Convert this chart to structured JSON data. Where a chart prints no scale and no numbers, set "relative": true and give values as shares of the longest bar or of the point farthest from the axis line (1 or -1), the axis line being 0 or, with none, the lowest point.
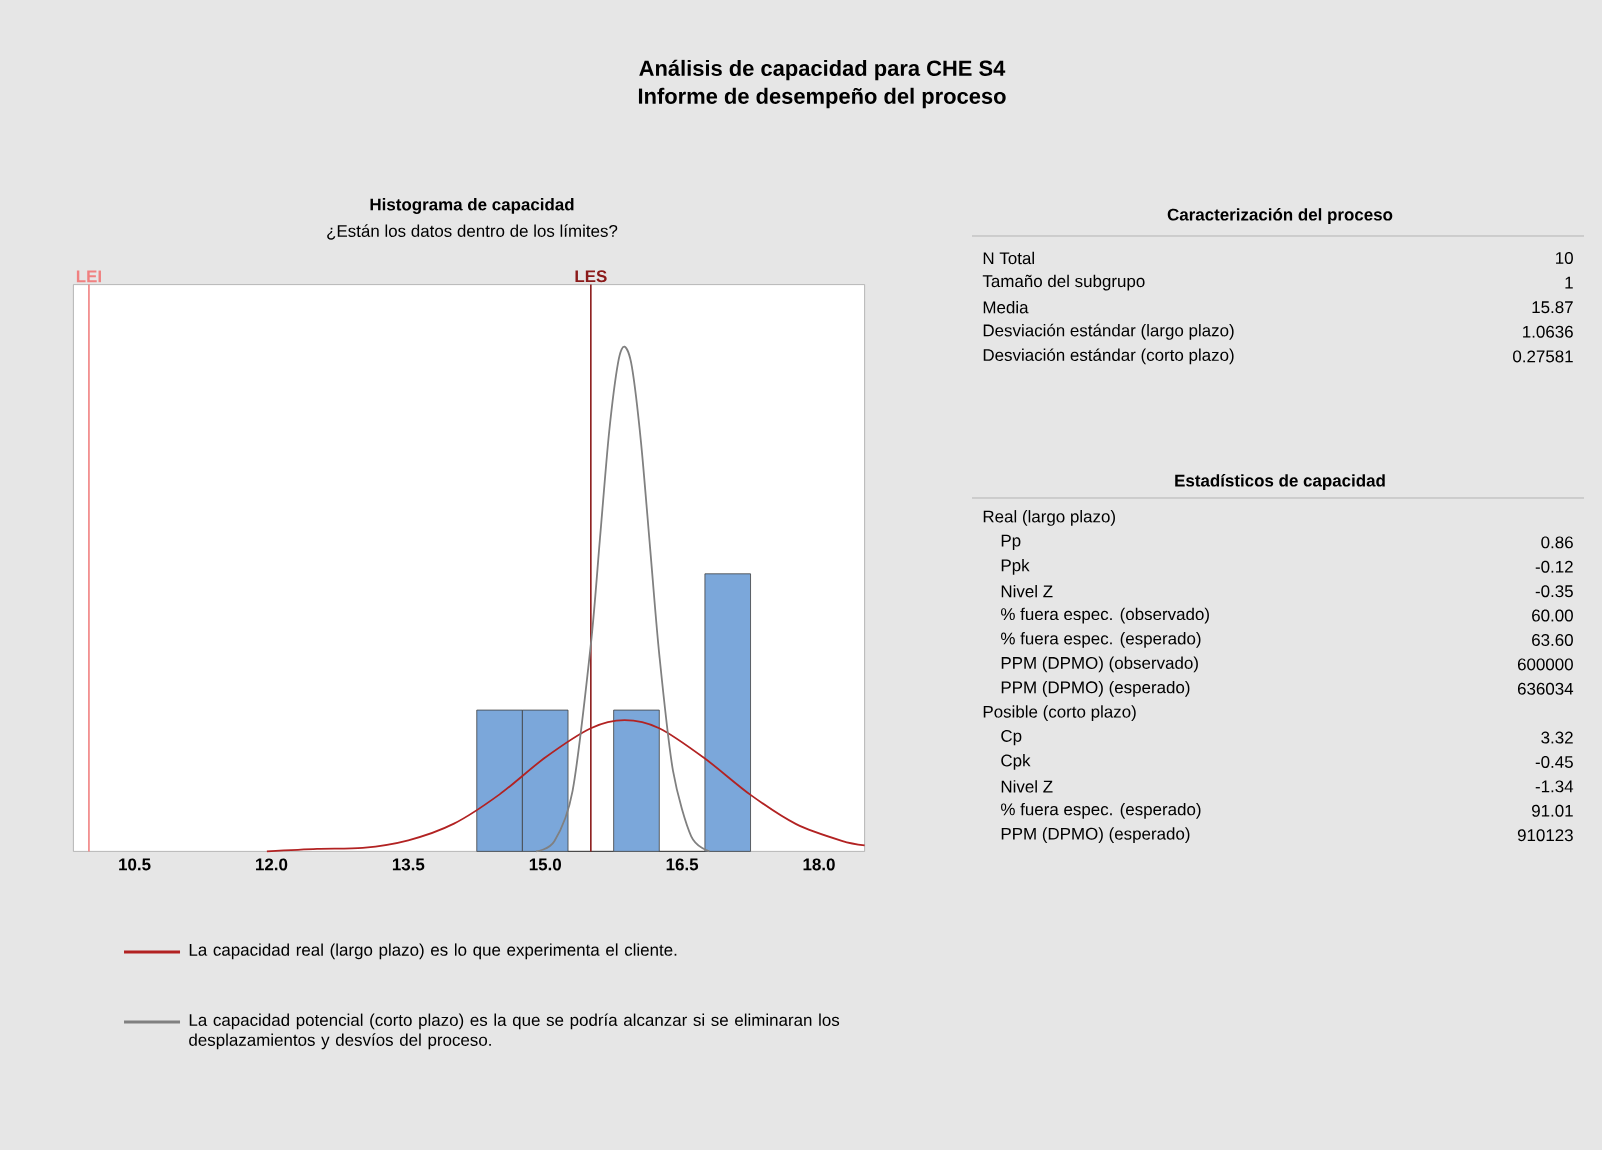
{
  "chart_data": {
    "type": "histogram",
    "title": "Análisis de capacidad para CHE S4",
    "subtitle": "Informe de desempeño del proceso",
    "relative": true,
    "bins": [
      14.25,
      14.75,
      15.25,
      15.75,
      16.25,
      16.75,
      17.25
    ],
    "values": [
      0.28,
      0.28,
      0,
      0.28,
      0,
      0.55
    ],
    "color": "#7ba7da",
    "xlim": [
      9.83,
      18.5
    ],
    "xticks": [
      10.5,
      {
        "value": 12,
        "label": "12.0"
      },
      13.5,
      {
        "value": 15,
        "label": "15.0"
      },
      16.5,
      {
        "value": 18,
        "label": "18.0"
      }
    ],
    "ref_lines": [
      {
        "axis": "x",
        "value": 10,
        "label": "LEI",
        "color": "#f08080"
      },
      {
        "axis": "x",
        "value": 15.5,
        "label": "LES",
        "color": "#8b1a1a"
      }
    ],
    "series": [
      {
        "name": "La capacidad real (largo plazo) es lo que experimenta el cliente.",
        "type": "line",
        "color": "#b22222",
        "x": [
          11.95,
          12.5,
          13.0,
          13.5,
          14.0,
          14.5,
          15.0,
          15.5,
          15.87,
          16.25,
          16.75,
          17.25,
          17.75,
          18.25,
          18.5
        ],
        "values": [
          0.0,
          0.005,
          0.007,
          0.022,
          0.055,
          0.113,
          0.186,
          0.244,
          0.26,
          0.244,
          0.184,
          0.112,
          0.054,
          0.021,
          0.012
        ]
      },
      {
        "name": "La capacidad potencial (corto plazo) es la que se podría alcanzar si se eliminaran los desplazamientos y desvíos del proceso.",
        "type": "line",
        "color": "#808080",
        "x": [
          14.9,
          15.1,
          15.3,
          15.5,
          15.6,
          15.7,
          15.8,
          15.87,
          15.95,
          16.05,
          16.15,
          16.25,
          16.4,
          16.6,
          16.8
        ],
        "values": [
          0.0,
          0.02,
          0.12,
          0.41,
          0.62,
          0.83,
          0.97,
          1.0,
          0.96,
          0.81,
          0.6,
          0.39,
          0.16,
          0.03,
          0.0
        ]
      }
    ],
    "legend": "bottom",
    "annotations": [
      "Histograma de capacidad",
      "¿Están los datos dentro de los límites?",
      "Caracterización del proceso",
      "N Total",
      "10",
      "Tamaño del subgrupo",
      "1",
      "Media",
      "15.87",
      "Desviación estándar (largo plazo)",
      "1.0636",
      "Desviación estándar (corto plazo)",
      "0.27581",
      "Estadísticos de capacidad",
      "Real (largo plazo)",
      "Pp",
      "0.86",
      "Ppk",
      "-0.12",
      "Nivel Z",
      "-0.35",
      "% fuera espec. (observado)",
      "60.00",
      "% fuera espec. (esperado)",
      "63.60",
      "PPM (DPMO) (observado)",
      "600000",
      "PPM (DPMO) (esperado)",
      "636034",
      "Posible (corto plazo)",
      "Cp",
      "3.32",
      "Cpk",
      "-0.45",
      "Nivel Z",
      "-1.34",
      "% fuera espec. (esperado)",
      "91.01",
      "PPM (DPMO) (esperado)",
      "910123"
    ]
  }
}
